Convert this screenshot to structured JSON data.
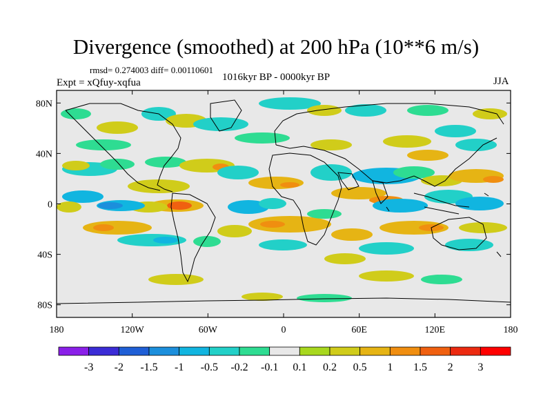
{
  "title": "Divergence (smoothed) at 200 hPa (10**6 m/s)",
  "stats": "rmsd= 0.274003 diff= 0.00110601",
  "experiment": "Expt = xQfuy-xqfua",
  "period": "1016kyr BP - 0000kyr BP",
  "season": "JJA",
  "lat_ticks": [
    "80N",
    "40N",
    "0",
    "40S",
    "80S"
  ],
  "lat_values": [
    80,
    40,
    0,
    -40,
    -80
  ],
  "lon_ticks": [
    "180",
    "120W",
    "60W",
    "0",
    "60E",
    "120E",
    "180"
  ],
  "lon_values": [
    -180,
    -120,
    -60,
    0,
    60,
    120,
    180
  ],
  "colorbar": {
    "labels": [
      "-3",
      "-2",
      "-1.5",
      "-1",
      "-0.5",
      "-0.2",
      "-0.1",
      "0.1",
      "0.2",
      "0.5",
      "1",
      "1.5",
      "2",
      "3"
    ],
    "colors": [
      "#8a1fe8",
      "#3b2cd6",
      "#1f5fd6",
      "#1c8fdc",
      "#11b5e0",
      "#22d0c8",
      "#2edc92",
      "#e8e8e8",
      "#a8d81e",
      "#d0cc1a",
      "#e6b414",
      "#f08e10",
      "#f06010",
      "#ec2a10",
      "#ff0000"
    ]
  },
  "map_colors": {
    "neutral": "#e8e8e8",
    "neg1": "#2edc92",
    "neg2": "#22d0c8",
    "neg3": "#11b5e0",
    "neg4": "#1c8fdc",
    "pos1": "#a8d81e",
    "pos2": "#d0cc1a",
    "pos3": "#e6b414",
    "pos4": "#f08e10",
    "pos5": "#f06010"
  }
}
